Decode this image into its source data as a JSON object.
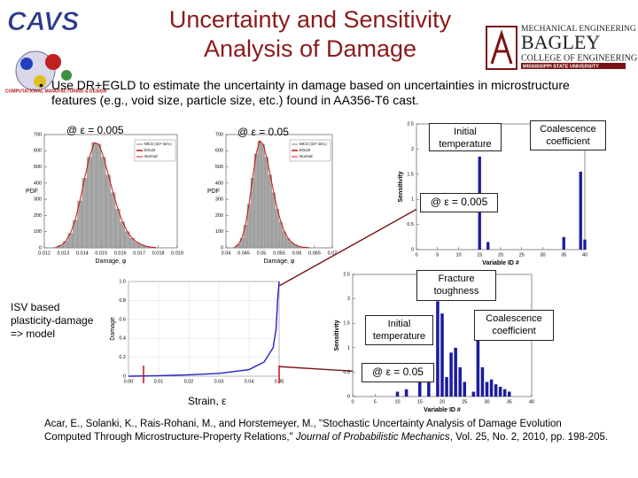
{
  "title_line1": "Uncertainty and Sensitivity",
  "title_line2": "Analysis of Damage",
  "logos": {
    "cavs": "CAVS",
    "cavs_sub": "COMPUTATIONAL MANUFACTURING & DESIGN",
    "department": "MECHANICAL ENGINEERING",
    "bagley": "BAGLEY",
    "college": "COLLEGE OF ENGINEERING",
    "university": "MISSISSIPPI STATE UNIVERSITY"
  },
  "bullet": "Use DR+EGLD to estimate the uncertainty in damage based on uncertainties in microstructure features (e.g., void size, particle size, etc.) found in AA356-T6 cast.",
  "captions": {
    "hist1": "@ ε = 0.005",
    "hist2": "@ ε = 0.05",
    "model": "ISV based plasticity-damage => model",
    "strain": "Strain, ε"
  },
  "callouts": {
    "top_temperature": "Initial temperature",
    "top_coalescence": "Coalescence coefficient",
    "top_strain": "@ ε = 0.005",
    "bottom_toughness": "Fracture toughness",
    "bottom_temperature": "Initial temperature",
    "bottom_coalescence": "Coalescence coefficient",
    "bottom_strain": "@ ε = 0.05"
  },
  "citation": {
    "before": "Acar, E., Solanki, K., Rais-Rohani, M., and Horstemeyer, M., \"Stochastic Uncertainty Analysis of Damage Evolution Computed Through Microstructure-Property Relations,\" ",
    "journal": "Journal of Probabilistic Mechanics",
    "after": ", Vol. 25, No. 2, 2010, pp. 198-205."
  },
  "charts": [
    {
      "type": "histogram",
      "xlabel": "Damage, φ",
      "ylabel": "PDF",
      "legend": [
        "MCS (10⁴ sim.)",
        "EGLD",
        "Normal"
      ],
      "color": "#a8a8a8",
      "fit_color": "#d01010",
      "xlim": [
        0.012,
        0.019
      ],
      "ylim": [
        0,
        700
      ],
      "xticks": [
        0.012,
        0.013,
        0.014,
        0.015,
        0.016,
        0.017,
        0.018,
        0.019
      ],
      "yticks": [
        0,
        100,
        200,
        300,
        400,
        500,
        600,
        700
      ],
      "bins": [
        0.0125,
        0.01275,
        0.013,
        0.01325,
        0.0135,
        0.01375,
        0.014,
        0.01425,
        0.0145,
        0.01475,
        0.015,
        0.01525,
        0.0155,
        0.01575,
        0.016,
        0.01625,
        0.0165,
        0.01675,
        0.017,
        0.01725,
        0.0175,
        0.01775,
        0.018
      ],
      "counts": [
        5,
        15,
        40,
        90,
        170,
        290,
        430,
        560,
        650,
        640,
        560,
        450,
        340,
        240,
        160,
        100,
        60,
        35,
        20,
        10,
        5,
        2
      ]
    },
    {
      "type": "histogram",
      "xlabel": "Damage, φ",
      "ylabel": "PDF",
      "legend": [
        "MCS (10⁴ sim.)",
        "EGLD",
        "Normal"
      ],
      "color": "#a8a8a8",
      "fit_color": "#d01010",
      "xlim": [
        0.04,
        0.07
      ],
      "ylim": [
        0,
        700
      ],
      "xticks": [
        0.04,
        0.045,
        0.05,
        0.055,
        0.06,
        0.065,
        0.07
      ],
      "yticks": [
        0,
        100,
        200,
        300,
        400,
        500,
        600,
        700
      ],
      "bins": [
        0.042,
        0.043,
        0.044,
        0.045,
        0.046,
        0.047,
        0.048,
        0.049,
        0.05,
        0.051,
        0.052,
        0.053,
        0.054,
        0.055,
        0.056,
        0.057,
        0.058,
        0.059,
        0.06,
        0.061,
        0.062,
        0.063,
        0.064
      ],
      "counts": [
        5,
        20,
        60,
        140,
        270,
        430,
        580,
        660,
        640,
        560,
        450,
        340,
        240,
        160,
        100,
        60,
        35,
        20,
        10,
        5,
        3,
        1
      ]
    },
    {
      "type": "bar",
      "xlabel": "Variable ID #",
      "ylabel": "Sensitivity",
      "color": "#1c1c9c",
      "xlim": [
        0,
        40
      ],
      "ylim": [
        0,
        2.5
      ],
      "xticks": [
        0,
        5,
        10,
        15,
        20,
        25,
        30,
        35,
        40
      ],
      "yticks": [
        0,
        0.5,
        1,
        1.5,
        2,
        2.5
      ],
      "x": [
        15,
        17,
        35,
        39,
        40
      ],
      "values": [
        1.85,
        0.15,
        0.25,
        1.55,
        0.2
      ]
    },
    {
      "type": "bar",
      "xlabel": "Variable ID #",
      "ylabel": "Sensitivity",
      "color": "#1c1c9c",
      "xlim": [
        0,
        40
      ],
      "ylim": [
        0,
        2.5
      ],
      "xticks": [
        0,
        5,
        10,
        15,
        20,
        25,
        30,
        35,
        40
      ],
      "yticks": [
        0,
        0.5,
        1,
        1.5,
        2,
        2.5
      ],
      "x": [
        10,
        12,
        15,
        17,
        19,
        20,
        21,
        22,
        23,
        24,
        25,
        27,
        28,
        29,
        30,
        31,
        32,
        33,
        34,
        35
      ],
      "values": [
        0.1,
        0.15,
        0.3,
        0.5,
        1.95,
        1.7,
        0.4,
        0.9,
        1.0,
        0.6,
        0.3,
        0.1,
        1.5,
        0.6,
        0.3,
        0.35,
        0.25,
        0.2,
        0.15,
        0.1
      ]
    },
    {
      "type": "line",
      "ylabel": "Damage",
      "color": "#2020c8",
      "marker_color": "#c01010",
      "xlim": [
        0,
        0.05
      ],
      "ylim": [
        0,
        1
      ],
      "xticks": [
        {
          "value": 0,
          "label": "0.00"
        },
        0.01,
        0.02,
        0.03,
        0.04,
        0.05
      ],
      "yticks": [
        0,
        0.2,
        0.4,
        0.6,
        0.8,
        {
          "value": 1,
          "label": "1.0"
        }
      ],
      "grid": true,
      "markers": [
        0.005,
        0.05
      ],
      "x": [
        0,
        0.01,
        0.02,
        0.03,
        0.04,
        0.045,
        0.048,
        0.049,
        0.0495,
        0.05
      ],
      "values": [
        0,
        0.005,
        0.015,
        0.03,
        0.07,
        0.15,
        0.3,
        0.5,
        0.8,
        1.0
      ]
    }
  ]
}
